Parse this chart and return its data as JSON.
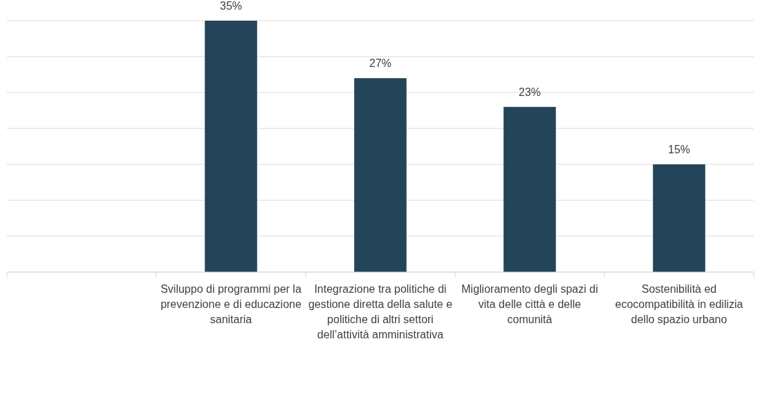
{
  "chart_data": {
    "type": "bar",
    "categories": [
      null,
      "Sviluppo di programmi per la prevenzione e di educazione sanitaria",
      "Integrazione tra politiche di gestione diretta della salute e politiche di altri settori dell’attività amministrativa",
      "Miglioramento degli spazi di vita delle città e delle comunità",
      "Sostenibilità ed ecocompatibilità in edilizia dello spazio urbano"
    ],
    "values": [
      null,
      35,
      27,
      23,
      15
    ],
    "value_labels": [
      null,
      "35%",
      "27%",
      "23%",
      "15%"
    ],
    "color": "#234459",
    "ylim": [
      0,
      35
    ],
    "yticks": [
      {
        "value": 0,
        "label": null
      },
      {
        "value": 5,
        "label": null
      },
      {
        "value": 10,
        "label": null
      },
      {
        "value": 15,
        "label": null
      },
      {
        "value": 20,
        "label": null
      },
      {
        "value": 25,
        "label": null
      },
      {
        "value": 30,
        "label": null
      },
      {
        "value": 35,
        "label": null
      }
    ],
    "grid": "y",
    "tick_labels": "x"
  }
}
